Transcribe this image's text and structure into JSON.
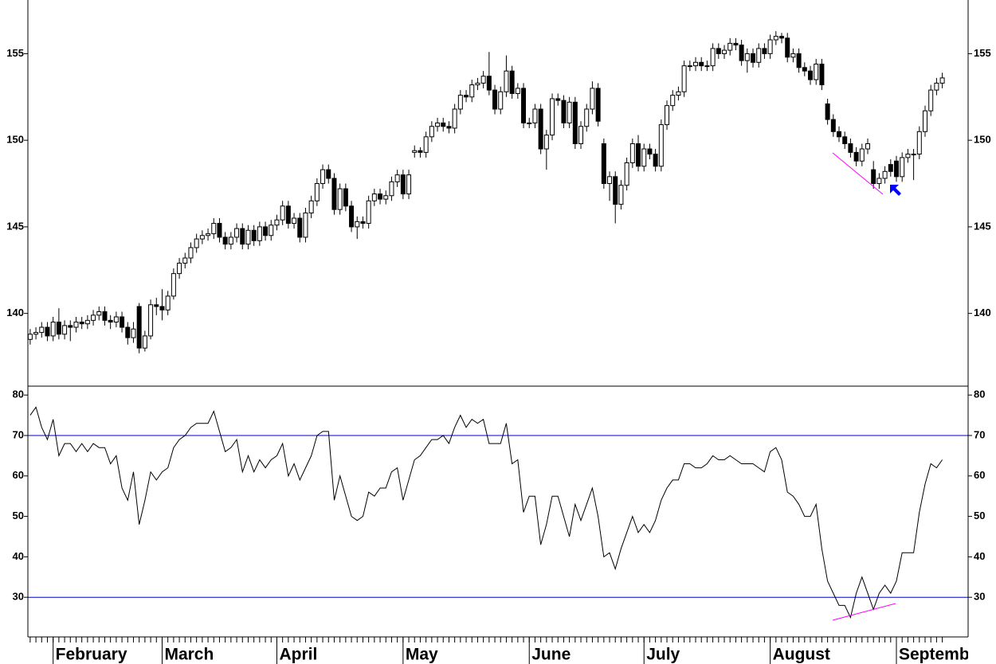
{
  "chart_data": [
    {
      "type": "candlestick",
      "xlim": [
        -0.4,
        163.5
      ],
      "xticks": [
        {
          "value": 4,
          "label": "February"
        },
        {
          "value": 23,
          "label": "March"
        },
        {
          "value": 43,
          "label": "April"
        },
        {
          "value": 65,
          "label": "May"
        },
        {
          "value": 87,
          "label": "June"
        },
        {
          "value": 107,
          "label": "July"
        },
        {
          "value": 129,
          "label": "August"
        },
        {
          "value": 151,
          "label": "September"
        }
      ],
      "ylim": [
        135.8,
        158.1
      ],
      "yticks": [
        140,
        145,
        150,
        155
      ],
      "up_color": "#ffffff",
      "down_color": "#000000",
      "open": [
        138.5,
        138.8,
        138.9,
        139.2,
        138.7,
        139.5,
        138.8,
        139.3,
        139.2,
        139.5,
        139.4,
        139.6,
        139.9,
        140.1,
        139.6,
        139.5,
        139.8,
        139.2,
        138.6,
        140.4,
        138.0,
        138.7,
        140.5,
        140.4,
        140.2,
        141.0,
        142.3,
        142.9,
        143.2,
        143.8,
        144.3,
        144.5,
        144.6,
        145.2,
        144.4,
        144.0,
        144.4,
        144.9,
        144.0,
        144.8,
        144.2,
        145.0,
        144.5,
        145.1,
        145.4,
        146.2,
        145.2,
        145.5,
        144.4,
        145.8,
        146.5,
        147.5,
        148.3,
        147.8,
        146.0,
        147.2,
        146.2,
        145.0,
        145.3,
        145.2,
        146.5,
        146.9,
        146.6,
        146.8,
        147.6,
        148.0,
        146.9,
        149.3,
        149.4,
        149.3,
        150.2,
        150.8,
        151.0,
        150.8,
        150.7,
        151.8,
        152.6,
        152.5,
        153.2,
        153.3,
        153.7,
        152.9,
        151.8,
        152.8,
        154.0,
        152.7,
        153.0,
        151.0,
        151.0,
        151.8,
        149.5,
        150.3,
        152.4,
        152.3,
        151.0,
        152.2,
        149.8,
        150.8,
        151.8,
        153.0,
        149.8,
        147.5,
        147.9,
        146.3,
        147.4,
        148.7,
        149.8,
        148.5,
        149.5,
        149.2,
        148.5,
        150.9,
        152.0,
        152.6,
        152.8,
        154.3,
        154.3,
        154.5,
        154.3,
        154.3,
        155.3,
        155.0,
        155.2,
        155.6,
        155.5,
        154.6,
        155.0,
        154.5,
        155.3,
        155.0,
        155.8,
        156.0,
        155.9,
        154.8,
        155.0,
        154.2,
        154.0,
        153.5,
        154.4,
        152.1,
        151.2,
        150.5,
        150.2,
        149.8,
        149.3,
        148.8,
        149.5,
        148.3,
        147.5,
        147.8,
        148.6,
        148.8,
        147.9,
        149.0,
        149.2,
        149.2,
        150.5,
        151.7,
        152.9,
        153.3
      ],
      "high": [
        139.1,
        139.2,
        139.5,
        139.5,
        139.8,
        140.3,
        139.6,
        139.6,
        139.8,
        139.8,
        139.9,
        140.2,
        140.4,
        140.4,
        139.9,
        140.1,
        140.1,
        139.5,
        139.5,
        140.6,
        139.0,
        140.8,
        140.9,
        141.4,
        141.3,
        142.6,
        143.2,
        143.5,
        144.1,
        144.6,
        144.8,
        144.9,
        145.5,
        145.5,
        144.7,
        144.7,
        145.2,
        145.2,
        145.1,
        145.1,
        145.3,
        145.3,
        145.4,
        145.7,
        146.5,
        146.5,
        145.8,
        145.8,
        146.1,
        146.8,
        147.8,
        148.6,
        148.6,
        148.1,
        147.5,
        147.5,
        146.5,
        145.6,
        145.6,
        146.8,
        147.2,
        147.2,
        147.1,
        147.9,
        148.3,
        148.3,
        148.3,
        149.7,
        149.6,
        150.5,
        151.1,
        151.3,
        151.3,
        151.1,
        152.1,
        152.9,
        152.9,
        153.5,
        153.6,
        154.0,
        155.1,
        153.2,
        153.1,
        154.9,
        154.3,
        153.3,
        153.3,
        151.3,
        152.1,
        152.1,
        150.6,
        152.7,
        152.7,
        152.6,
        152.5,
        152.5,
        151.1,
        152.1,
        153.4,
        153.3,
        150.1,
        148.2,
        148.2,
        147.7,
        149.0,
        150.1,
        150.3,
        149.8,
        149.8,
        149.5,
        151.2,
        152.3,
        152.9,
        153.1,
        154.6,
        154.6,
        154.8,
        154.8,
        154.6,
        155.6,
        155.6,
        155.5,
        155.9,
        155.9,
        155.8,
        155.3,
        155.3,
        155.6,
        155.6,
        156.1,
        156.3,
        156.2,
        156.2,
        155.3,
        155.3,
        154.5,
        154.3,
        154.7,
        154.7,
        152.4,
        151.5,
        150.8,
        150.5,
        150.1,
        149.6,
        149.8,
        150.1,
        148.8,
        148.1,
        148.5,
        148.9,
        149.1,
        149.3,
        149.5,
        149.5,
        150.8,
        152.0,
        153.2,
        153.6,
        153.9
      ],
      "low": [
        138.2,
        138.5,
        138.6,
        138.4,
        138.4,
        138.5,
        138.5,
        138.4,
        138.9,
        139.1,
        139.1,
        139.3,
        139.6,
        139.3,
        139.1,
        139.2,
        138.9,
        138.2,
        138.3,
        137.7,
        137.8,
        138.5,
        139.9,
        139.6,
        139.9,
        140.8,
        142.0,
        142.6,
        142.9,
        143.5,
        144.0,
        144.2,
        144.3,
        144.1,
        143.7,
        143.7,
        144.1,
        143.7,
        143.7,
        143.9,
        143.9,
        144.2,
        144.2,
        144.8,
        145.1,
        144.9,
        144.9,
        144.1,
        144.1,
        145.5,
        146.2,
        147.2,
        147.5,
        145.7,
        145.7,
        145.9,
        144.7,
        144.3,
        144.9,
        144.9,
        146.2,
        146.3,
        146.3,
        146.5,
        147.3,
        146.6,
        146.6,
        149.0,
        149.0,
        149.0,
        149.9,
        150.5,
        150.5,
        150.4,
        150.4,
        151.5,
        152.2,
        152.2,
        152.9,
        153.0,
        152.6,
        151.5,
        151.5,
        152.5,
        152.4,
        152.4,
        150.7,
        150.7,
        150.7,
        149.2,
        148.3,
        150.0,
        152.0,
        150.7,
        150.7,
        149.5,
        149.5,
        150.5,
        151.5,
        150.8,
        147.2,
        146.5,
        145.2,
        146.0,
        147.1,
        148.4,
        148.2,
        148.2,
        148.9,
        148.2,
        148.2,
        150.6,
        151.7,
        152.3,
        152.5,
        154.0,
        154.0,
        154.0,
        154.0,
        154.0,
        154.7,
        154.7,
        154.9,
        155.2,
        154.3,
        153.9,
        154.2,
        154.2,
        154.7,
        154.7,
        155.5,
        155.6,
        154.5,
        154.5,
        153.9,
        153.7,
        153.2,
        153.2,
        152.9,
        150.9,
        150.2,
        149.9,
        149.5,
        149.0,
        148.5,
        148.5,
        149.2,
        147.2,
        147.2,
        147.5,
        147.9,
        147.6,
        147.6,
        148.7,
        147.7,
        148.9,
        150.2,
        151.4,
        152.6,
        153.0
      ],
      "close": [
        138.8,
        138.9,
        139.2,
        138.7,
        139.5,
        138.8,
        139.3,
        139.2,
        139.5,
        139.4,
        139.6,
        139.9,
        140.1,
        139.6,
        139.5,
        139.8,
        139.2,
        138.6,
        139.1,
        138.0,
        138.7,
        140.5,
        140.4,
        140.2,
        141.0,
        142.3,
        142.9,
        143.2,
        143.8,
        144.3,
        144.5,
        144.6,
        145.2,
        144.4,
        144.0,
        144.4,
        144.9,
        144.0,
        144.8,
        144.2,
        145.0,
        144.5,
        145.1,
        145.4,
        146.2,
        145.2,
        145.5,
        144.4,
        145.8,
        146.5,
        147.5,
        148.3,
        147.8,
        146.0,
        147.2,
        146.2,
        145.0,
        145.3,
        145.2,
        146.5,
        146.9,
        146.6,
        146.8,
        147.6,
        148.0,
        146.9,
        148.0,
        149.4,
        149.3,
        150.2,
        150.8,
        151.0,
        150.8,
        150.7,
        151.8,
        152.6,
        152.5,
        153.2,
        153.3,
        153.7,
        152.9,
        151.8,
        152.8,
        154.0,
        152.7,
        153.0,
        151.0,
        151.0,
        151.8,
        149.5,
        150.3,
        152.4,
        152.3,
        151.0,
        152.2,
        149.8,
        150.8,
        151.8,
        153.0,
        151.1,
        147.5,
        147.9,
        146.3,
        147.4,
        148.7,
        149.8,
        148.5,
        149.5,
        149.2,
        148.5,
        150.9,
        152.0,
        152.6,
        152.8,
        154.3,
        154.3,
        154.5,
        154.3,
        154.3,
        155.3,
        155.0,
        155.2,
        155.6,
        155.5,
        154.6,
        155.0,
        154.5,
        155.3,
        155.0,
        155.8,
        156.0,
        155.9,
        154.8,
        155.0,
        154.2,
        154.0,
        153.5,
        154.4,
        153.2,
        151.2,
        150.5,
        150.2,
        149.8,
        149.3,
        148.8,
        149.5,
        149.8,
        147.5,
        147.8,
        148.2,
        148.2,
        147.9,
        149.0,
        149.2,
        149.2,
        150.5,
        151.7,
        152.9,
        153.3,
        153.6
      ]
    },
    {
      "type": "line",
      "ylim": [
        20.2,
        82.2
      ],
      "yticks": [
        30,
        40,
        50,
        60,
        70,
        80
      ],
      "hlines": [
        70,
        30
      ],
      "hline_color": "#0000cc",
      "color": "#000000",
      "values": [
        75,
        77,
        72,
        69,
        74,
        65,
        68,
        68,
        66,
        68,
        66,
        68,
        67,
        67,
        63,
        65,
        57,
        54,
        61,
        48,
        54,
        61,
        59,
        61,
        62,
        67,
        69,
        70,
        72,
        73,
        73,
        73,
        76,
        71,
        66,
        67,
        69,
        61,
        65,
        61,
        64,
        62,
        64,
        65,
        68,
        60,
        63,
        59,
        62,
        65,
        70,
        71,
        71,
        54,
        60,
        55,
        50,
        49,
        50,
        56,
        55,
        57,
        57,
        61,
        62,
        54,
        59,
        64,
        65,
        67,
        69,
        69,
        70,
        68,
        72,
        75,
        72,
        74,
        73,
        74,
        68,
        68,
        68,
        73,
        63,
        64,
        51,
        55,
        55,
        43,
        48,
        55,
        55,
        50,
        45,
        53,
        49,
        53,
        57,
        50,
        40,
        41,
        37,
        42,
        46,
        50,
        46,
        48,
        46,
        49,
        54,
        57,
        59,
        59,
        63,
        63,
        62,
        62,
        63,
        65,
        64,
        64,
        65,
        64,
        63,
        63,
        63,
        62,
        61,
        66,
        67,
        64,
        56,
        55,
        53,
        50,
        50,
        53,
        42,
        34,
        31,
        28,
        28,
        25,
        31,
        35,
        31,
        27,
        31,
        33,
        31,
        34,
        41,
        41,
        41,
        51,
        58,
        63,
        62,
        64
      ]
    }
  ]
}
